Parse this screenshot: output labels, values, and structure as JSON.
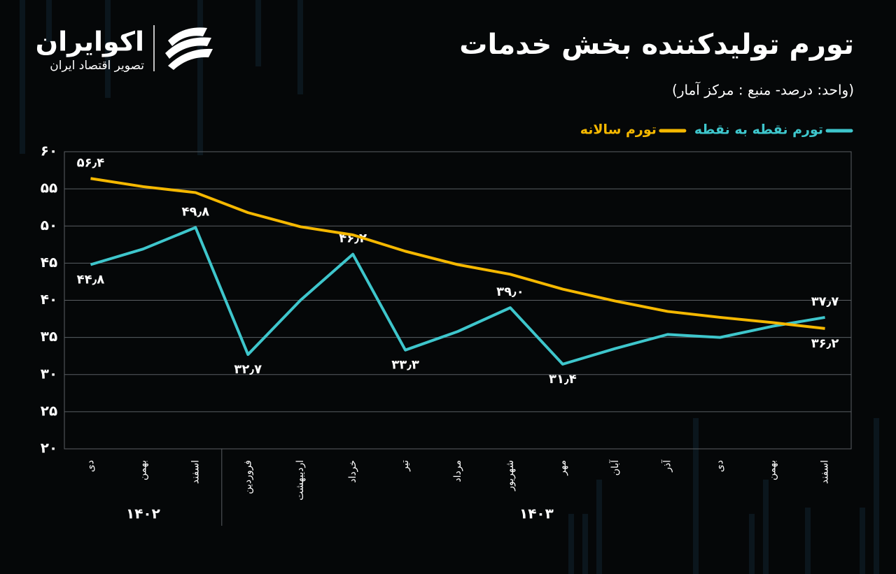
{
  "logo": {
    "name": "اکوایران",
    "tagline": "تصویر اقتصاد ایران"
  },
  "chart_data": {
    "type": "line",
    "title": "تورم تولیدکننده بخش خدمات",
    "subtitle": "(واحد: درصد- منبع : مرکز آمار)",
    "categories": [
      "دی",
      "بهمن",
      "اسفند",
      "فروردین",
      "اردیبهشت",
      "خرداد",
      "تیر",
      "مرداد",
      "شهریور",
      "مهر",
      "آبان",
      "آذر",
      "دی",
      "بهمن",
      "اسفند"
    ],
    "groups": [
      {
        "label": "۱۴۰۲",
        "count": 3
      },
      {
        "label": "۱۴۰۳",
        "count": 12
      }
    ],
    "series": [
      {
        "name": "تورم نقطه به نقطه",
        "color": "#3ec6cc",
        "values": [
          44.8,
          46.9,
          49.8,
          32.7,
          40.0,
          46.2,
          33.3,
          35.8,
          39.0,
          31.4,
          33.5,
          35.4,
          35.0,
          36.5,
          37.7
        ],
        "value_labels": [
          "۴۴٫۸",
          null,
          "۴۹٫۸",
          "۳۲٫۷",
          null,
          "۴۶٫۲",
          "۳۳٫۳",
          null,
          "۳۹٫۰",
          "۳۱٫۴",
          null,
          null,
          null,
          null,
          "۳۷٫۷"
        ]
      },
      {
        "name": "تورم سالانه",
        "color": "#f5b800",
        "values": [
          56.4,
          55.3,
          54.5,
          51.8,
          49.9,
          48.8,
          46.6,
          44.8,
          43.5,
          41.5,
          39.9,
          38.5,
          37.7,
          37.0,
          36.2
        ],
        "value_labels": [
          "۵۶٫۴",
          null,
          null,
          null,
          null,
          null,
          null,
          null,
          null,
          null,
          null,
          null,
          null,
          null,
          "۳۶٫۲"
        ]
      }
    ],
    "ylim": [
      20,
      60
    ],
    "yticks": [
      {
        "value": 20,
        "label": "۲۰"
      },
      {
        "value": 25,
        "label": "۲۵"
      },
      {
        "value": 30,
        "label": "۳۰"
      },
      {
        "value": 35,
        "label": "۳۵"
      },
      {
        "value": 40,
        "label": "۴۰"
      },
      {
        "value": 45,
        "label": "۴۵"
      },
      {
        "value": 50,
        "label": "۵۰"
      },
      {
        "value": 55,
        "label": "۵۵"
      },
      {
        "value": 60,
        "label": "۶۰"
      }
    ],
    "grid": true,
    "legend": "top-right"
  }
}
